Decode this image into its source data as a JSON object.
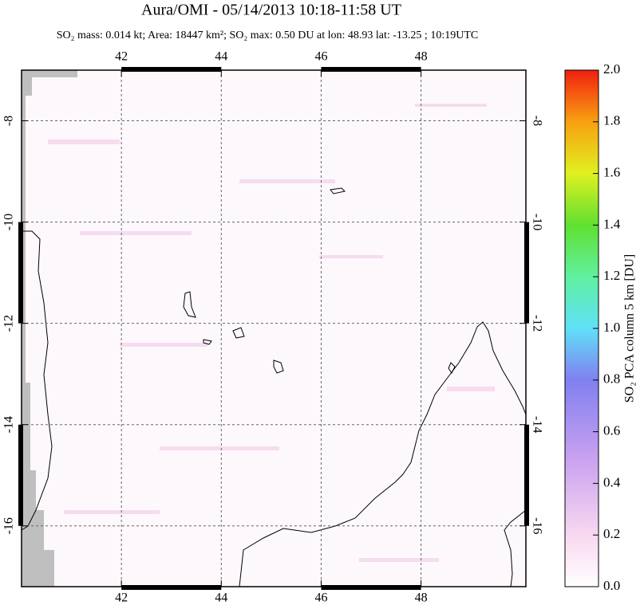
{
  "chart_data": {
    "type": "map",
    "title": "Aura/OMI - 05/14/2013 10:18-11:58 UT",
    "subtitle": "SO₂ mass: 0.014 kt; Area: 18447 km²; SO₂ max: 0.50 DU at lon: 48.93 lat: -13.25 ; 10:19UTC",
    "xlim": [
      40,
      50.1
    ],
    "ylim": [
      -17.2,
      -7
    ],
    "xticks": [
      42,
      44,
      46,
      48
    ],
    "yticks": [
      -8,
      -10,
      -12,
      -14,
      -16
    ],
    "grid": true,
    "colorbar": {
      "label": "SO₂ PCA column 5 km [DU]",
      "lim": [
        0,
        2
      ],
      "ticks": [
        {
          "value": 0,
          "label": "0.0"
        },
        {
          "value": 0.2,
          "label": "0.2"
        },
        {
          "value": 0.4,
          "label": "0.4"
        },
        {
          "value": 0.6,
          "label": "0.6"
        },
        {
          "value": 0.8,
          "label": "0.8"
        },
        {
          "value": 1,
          "label": "1.0"
        },
        {
          "value": 1.2,
          "label": "1.2"
        },
        {
          "value": 1.4,
          "label": "1.4"
        },
        {
          "value": 1.6,
          "label": "1.6"
        },
        {
          "value": 1.8,
          "label": "1.8"
        },
        {
          "value": 2,
          "label": "2.0"
        }
      ]
    }
  }
}
